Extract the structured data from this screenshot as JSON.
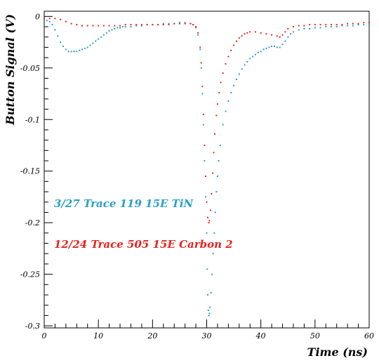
{
  "chart_data": {
    "type": "scatter",
    "xlabel": "Time (ns)",
    "ylabel": "Button Signal (V)",
    "xlim": [
      0,
      60
    ],
    "ylim": [
      -0.302,
      0.005
    ],
    "x_ticks": [
      0,
      10,
      20,
      30,
      40,
      50,
      60
    ],
    "x_tick_labels": [
      "0",
      "10",
      "20",
      "30",
      "40",
      "50",
      "60"
    ],
    "y_ticks": [
      0,
      -0.05,
      -0.1,
      -0.15,
      -0.2,
      -0.25,
      -0.3
    ],
    "y_tick_labels": [
      "0",
      "-0.05",
      "-0.1",
      "-0.15",
      "-0.2",
      "-0.25",
      "-0.3"
    ],
    "grid": false,
    "series": [
      {
        "name": "3/27 Trace 119 15E TiN",
        "color": "#2a9fc4",
        "points": [
          [
            0,
            -0.002
          ],
          [
            0.5,
            -0.004
          ],
          [
            1,
            -0.005
          ],
          [
            1.5,
            -0.008
          ],
          [
            2,
            -0.013
          ],
          [
            2.5,
            -0.019
          ],
          [
            3,
            -0.025
          ],
          [
            3.5,
            -0.029
          ],
          [
            4,
            -0.032
          ],
          [
            4.5,
            -0.034
          ],
          [
            5,
            -0.034
          ],
          [
            5.5,
            -0.034
          ],
          [
            6,
            -0.034
          ],
          [
            6.5,
            -0.033
          ],
          [
            7,
            -0.032
          ],
          [
            7.5,
            -0.031
          ],
          [
            8,
            -0.03
          ],
          [
            8.5,
            -0.028
          ],
          [
            9,
            -0.026
          ],
          [
            9.5,
            -0.024
          ],
          [
            10,
            -0.022
          ],
          [
            10.5,
            -0.02
          ],
          [
            11,
            -0.018
          ],
          [
            11.5,
            -0.016
          ],
          [
            12,
            -0.014
          ],
          [
            12.5,
            -0.013
          ],
          [
            13,
            -0.012
          ],
          [
            13.5,
            -0.011
          ],
          [
            14,
            -0.011
          ],
          [
            14.5,
            -0.01
          ],
          [
            15,
            -0.01
          ],
          [
            16,
            -0.01
          ],
          [
            17,
            -0.009
          ],
          [
            18,
            -0.009
          ],
          [
            19,
            -0.008
          ],
          [
            20,
            -0.008
          ],
          [
            21,
            -0.008
          ],
          [
            22,
            -0.007
          ],
          [
            23,
            -0.007
          ],
          [
            24,
            -0.007
          ],
          [
            25,
            -0.006
          ],
          [
            26,
            -0.006
          ],
          [
            27,
            -0.007
          ],
          [
            27.5,
            -0.008
          ],
          [
            28,
            -0.011
          ],
          [
            28.4,
            -0.018
          ],
          [
            28.8,
            -0.032
          ],
          [
            29,
            -0.05
          ],
          [
            29.2,
            -0.075
          ],
          [
            29.4,
            -0.105
          ],
          [
            29.6,
            -0.14
          ],
          [
            29.8,
            -0.175
          ],
          [
            30,
            -0.21
          ],
          [
            30.1,
            -0.245
          ],
          [
            30.2,
            -0.27
          ],
          [
            30.3,
            -0.285
          ],
          [
            30.4,
            -0.29
          ],
          [
            30.5,
            -0.288
          ],
          [
            30.6,
            -0.282
          ],
          [
            30.8,
            -0.268
          ],
          [
            31,
            -0.25
          ],
          [
            31.2,
            -0.23
          ],
          [
            31.4,
            -0.21
          ],
          [
            31.6,
            -0.19
          ],
          [
            31.8,
            -0.17
          ],
          [
            32,
            -0.155
          ],
          [
            32.2,
            -0.14
          ],
          [
            32.5,
            -0.125
          ],
          [
            33,
            -0.105
          ],
          [
            33.5,
            -0.092
          ],
          [
            34,
            -0.082
          ],
          [
            34.5,
            -0.074
          ],
          [
            35,
            -0.067
          ],
          [
            35.5,
            -0.061
          ],
          [
            36,
            -0.056
          ],
          [
            36.5,
            -0.051
          ],
          [
            37,
            -0.047
          ],
          [
            37.5,
            -0.044
          ],
          [
            38,
            -0.041
          ],
          [
            38.5,
            -0.039
          ],
          [
            39,
            -0.037
          ],
          [
            39.5,
            -0.035
          ],
          [
            40,
            -0.034
          ],
          [
            40.5,
            -0.032
          ],
          [
            41,
            -0.031
          ],
          [
            41.5,
            -0.03
          ],
          [
            42,
            -0.029
          ],
          [
            42.5,
            -0.029
          ],
          [
            43,
            -0.03
          ],
          [
            43.5,
            -0.03
          ],
          [
            44,
            -0.027
          ],
          [
            44.5,
            -0.024
          ],
          [
            45,
            -0.02
          ],
          [
            45.5,
            -0.017
          ],
          [
            46,
            -0.015
          ],
          [
            47,
            -0.013
          ],
          [
            48,
            -0.012
          ],
          [
            49,
            -0.012
          ],
          [
            50,
            -0.011
          ],
          [
            51,
            -0.011
          ],
          [
            52,
            -0.01
          ],
          [
            53,
            -0.01
          ],
          [
            54,
            -0.01
          ],
          [
            55,
            -0.009
          ],
          [
            56,
            -0.009
          ],
          [
            57,
            -0.009
          ],
          [
            58,
            -0.008
          ],
          [
            59,
            -0.008
          ],
          [
            60,
            -0.008
          ]
        ]
      },
      {
        "name": "12/24 Trace 505 15E Carbon 2",
        "color": "#e8231c",
        "points": [
          [
            0,
            -0.002
          ],
          [
            1,
            -0.002
          ],
          [
            2,
            -0.002
          ],
          [
            3,
            -0.003
          ],
          [
            4,
            -0.005
          ],
          [
            5,
            -0.007
          ],
          [
            6,
            -0.008
          ],
          [
            7,
            -0.009
          ],
          [
            8,
            -0.009
          ],
          [
            9,
            -0.009
          ],
          [
            10,
            -0.009
          ],
          [
            11,
            -0.009
          ],
          [
            12,
            -0.009
          ],
          [
            13,
            -0.009
          ],
          [
            14,
            -0.009
          ],
          [
            15,
            -0.008
          ],
          [
            16,
            -0.008
          ],
          [
            17,
            -0.008
          ],
          [
            18,
            -0.008
          ],
          [
            19,
            -0.008
          ],
          [
            20,
            -0.008
          ],
          [
            21,
            -0.008
          ],
          [
            22,
            -0.008
          ],
          [
            23,
            -0.008
          ],
          [
            24,
            -0.007
          ],
          [
            25,
            -0.007
          ],
          [
            26,
            -0.007
          ],
          [
            27,
            -0.007
          ],
          [
            27.5,
            -0.008
          ],
          [
            28,
            -0.01
          ],
          [
            28.4,
            -0.016
          ],
          [
            28.8,
            -0.03
          ],
          [
            29,
            -0.045
          ],
          [
            29.2,
            -0.068
          ],
          [
            29.4,
            -0.095
          ],
          [
            29.6,
            -0.125
          ],
          [
            29.8,
            -0.155
          ],
          [
            30,
            -0.18
          ],
          [
            30.2,
            -0.195
          ],
          [
            30.4,
            -0.2
          ],
          [
            30.5,
            -0.198
          ],
          [
            30.7,
            -0.188
          ],
          [
            30.9,
            -0.172
          ],
          [
            31.1,
            -0.152
          ],
          [
            31.3,
            -0.132
          ],
          [
            31.5,
            -0.114
          ],
          [
            31.8,
            -0.096
          ],
          [
            32,
            -0.085
          ],
          [
            32.3,
            -0.074
          ],
          [
            32.6,
            -0.064
          ],
          [
            33,
            -0.055
          ],
          [
            33.5,
            -0.046
          ],
          [
            34,
            -0.039
          ],
          [
            34.5,
            -0.033
          ],
          [
            35,
            -0.028
          ],
          [
            35.5,
            -0.024
          ],
          [
            36,
            -0.021
          ],
          [
            36.5,
            -0.019
          ],
          [
            37,
            -0.017
          ],
          [
            37.5,
            -0.016
          ],
          [
            38,
            -0.015
          ],
          [
            39,
            -0.015
          ],
          [
            40,
            -0.016
          ],
          [
            41,
            -0.017
          ],
          [
            42,
            -0.018
          ],
          [
            43,
            -0.019
          ],
          [
            43.5,
            -0.02
          ],
          [
            44,
            -0.018
          ],
          [
            44.5,
            -0.015
          ],
          [
            45,
            -0.012
          ],
          [
            46,
            -0.01
          ],
          [
            47,
            -0.009
          ],
          [
            48,
            -0.009
          ],
          [
            49,
            -0.008
          ],
          [
            50,
            -0.008
          ],
          [
            51,
            -0.008
          ],
          [
            52,
            -0.008
          ],
          [
            53,
            -0.008
          ],
          [
            54,
            -0.008
          ],
          [
            55,
            -0.008
          ],
          [
            56,
            -0.007
          ],
          [
            57,
            -0.007
          ],
          [
            58,
            -0.007
          ],
          [
            59,
            -0.006
          ],
          [
            60,
            -0.006
          ]
        ]
      }
    ]
  }
}
